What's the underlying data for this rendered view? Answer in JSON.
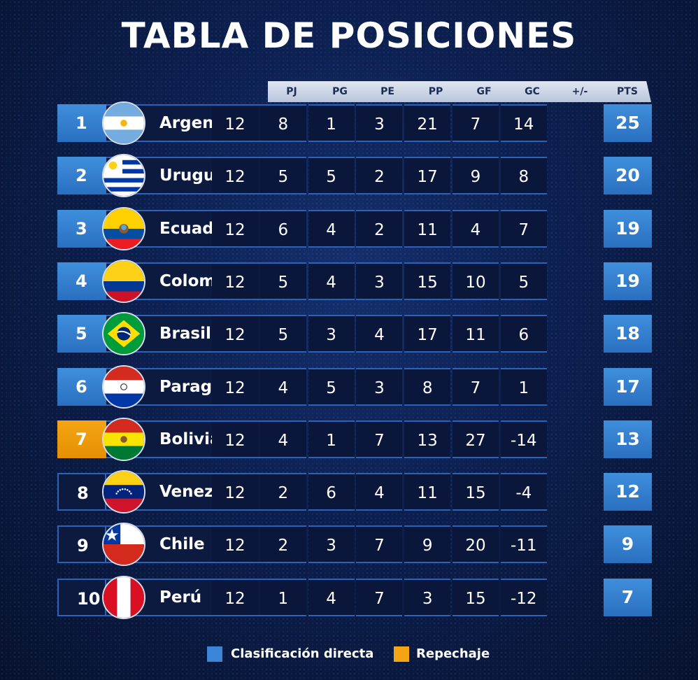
{
  "title": "TABLA DE POSICIONES",
  "headers": [
    "PJ",
    "PG",
    "PE",
    "PP",
    "GF",
    "GC",
    "+/-",
    "PTS"
  ],
  "colors": {
    "direct": "#3a86d6",
    "playoff": "#f5a513"
  },
  "rows": [
    {
      "pos": "1",
      "team": "Argentina",
      "flag": "argentina-flag-icon",
      "status": "direct",
      "stats": [
        "12",
        "8",
        "1",
        "3",
        "21",
        "7",
        "14"
      ],
      "pts": "25"
    },
    {
      "pos": "2",
      "team": "Uruguay",
      "flag": "uruguay-flag-icon",
      "status": "direct",
      "stats": [
        "12",
        "5",
        "5",
        "2",
        "17",
        "9",
        "8"
      ],
      "pts": "20"
    },
    {
      "pos": "3",
      "team": "Ecuador",
      "flag": "ecuador-flag-icon",
      "status": "direct",
      "stats": [
        "12",
        "6",
        "4",
        "2",
        "11",
        "4",
        "7"
      ],
      "pts": "19"
    },
    {
      "pos": "4",
      "team": "Colombia",
      "flag": "colombia-flag-icon",
      "status": "direct",
      "stats": [
        "12",
        "5",
        "4",
        "3",
        "15",
        "10",
        "5"
      ],
      "pts": "19"
    },
    {
      "pos": "5",
      "team": "Brasil",
      "flag": "brasil-flag-icon",
      "status": "direct",
      "stats": [
        "12",
        "5",
        "3",
        "4",
        "17",
        "11",
        "6"
      ],
      "pts": "18"
    },
    {
      "pos": "6",
      "team": "Paraguay",
      "flag": "paraguay-flag-icon",
      "status": "direct",
      "stats": [
        "12",
        "4",
        "5",
        "3",
        "8",
        "7",
        "1"
      ],
      "pts": "17"
    },
    {
      "pos": "7",
      "team": "Bolivia",
      "flag": "bolivia-flag-icon",
      "status": "playoff",
      "stats": [
        "12",
        "4",
        "1",
        "7",
        "13",
        "27",
        "-14"
      ],
      "pts": "13"
    },
    {
      "pos": "8",
      "team": "Venezuela",
      "flag": "venezuela-flag-icon",
      "status": "none",
      "stats": [
        "12",
        "2",
        "6",
        "4",
        "11",
        "15",
        "-4"
      ],
      "pts": "12"
    },
    {
      "pos": "9",
      "team": "Chile",
      "flag": "chile-flag-icon",
      "status": "none",
      "stats": [
        "12",
        "2",
        "3",
        "7",
        "9",
        "20",
        "-11"
      ],
      "pts": "9"
    },
    {
      "pos": "10",
      "team": "Perú",
      "flag": "peru-flag-icon",
      "status": "none",
      "stats": [
        "12",
        "1",
        "4",
        "7",
        "3",
        "15",
        "-12"
      ],
      "pts": "7"
    }
  ],
  "legend": {
    "direct": "Clasificación directa",
    "playoff": "Repechaje"
  }
}
